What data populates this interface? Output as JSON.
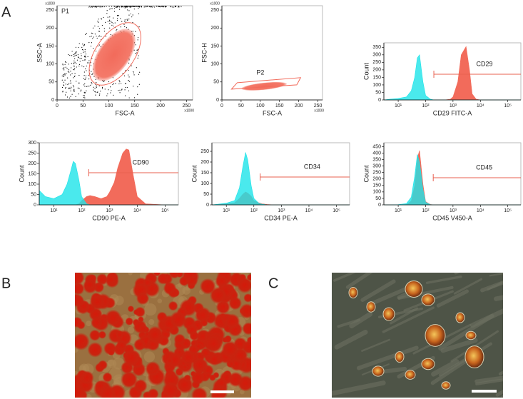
{
  "panel_labels": [
    "A",
    "B",
    "C"
  ],
  "chart_data": [
    {
      "type": "scatter",
      "xlabel": "FSC-A",
      "ylabel": "SSC-A",
      "x_multiplier": "x1000",
      "y_multiplier": "x1000",
      "xlim": [
        0,
        262
      ],
      "ylim": [
        0,
        262
      ],
      "xticks": [
        0,
        50,
        100,
        150,
        200,
        250
      ],
      "yticks": [
        0,
        50,
        100,
        150,
        200,
        250
      ],
      "gate": {
        "label": "P1"
      },
      "color": "#f26b5b"
    },
    {
      "type": "scatter",
      "xlabel": "FSC-A",
      "ylabel": "FSC-H",
      "x_multiplier": "x1000",
      "y_multiplier": "x1000",
      "xlim": [
        0,
        262
      ],
      "ylim": [
        0,
        262
      ],
      "xticks": [
        0,
        50,
        100,
        150,
        200,
        250
      ],
      "yticks": [
        0,
        50,
        100,
        150,
        200,
        250
      ],
      "gate": {
        "label": "P2"
      },
      "color": "#f26b5b"
    },
    {
      "type": "histogram",
      "xlabel": "CD29 FITC-A",
      "ylabel": "Count",
      "xscale": "log",
      "xlim": [
        3,
        300000
      ],
      "ylim": [
        0,
        380
      ],
      "xticks": [
        {
          "value": 10,
          "label": "10¹"
        },
        {
          "value": 100,
          "label": "10²"
        },
        {
          "value": 1000,
          "label": "10³"
        },
        {
          "value": 10000,
          "label": "10⁴"
        },
        {
          "value": 100000,
          "label": "10⁵"
        }
      ],
      "yticks": [
        0,
        50,
        100,
        150,
        200,
        250,
        300,
        350
      ],
      "x": [
        3,
        5,
        10,
        20,
        30,
        40,
        50,
        60,
        80,
        100,
        150,
        200,
        300,
        500,
        800,
        1000,
        1500,
        2000,
        3000,
        4000,
        5000,
        7000,
        10000,
        20000,
        100000,
        300000
      ],
      "series": [
        {
          "color": "#f26b5b",
          "values": [
            0,
            0,
            0,
            0,
            0,
            0,
            0,
            0,
            0,
            0,
            0,
            0,
            0,
            0,
            5,
            20,
            120,
            300,
            355,
            200,
            40,
            5,
            0,
            0,
            0,
            0
          ]
        },
        {
          "color": "#1de3e8",
          "values": [
            0,
            5,
            10,
            20,
            60,
            150,
            280,
            300,
            120,
            30,
            5,
            0,
            0,
            0,
            0,
            0,
            0,
            0,
            0,
            0,
            0,
            0,
            0,
            0,
            0,
            0
          ]
        }
      ],
      "gate": {
        "label": "CD29",
        "x": 200,
        "y": 171
      }
    },
    {
      "type": "histogram",
      "xlabel": "CD90 PE-A",
      "ylabel": "Count",
      "xscale": "log",
      "xlim": [
        3,
        300000
      ],
      "ylim": [
        0,
        300
      ],
      "xticks": [
        {
          "value": 10,
          "label": "10¹"
        },
        {
          "value": 100,
          "label": "10²"
        },
        {
          "value": 1000,
          "label": "10³"
        },
        {
          "value": 10000,
          "label": "10⁴"
        },
        {
          "value": 100000,
          "label": "10⁵"
        }
      ],
      "yticks": [
        0,
        50,
        100,
        150,
        200,
        250,
        300
      ],
      "x": [
        3,
        5,
        10,
        20,
        30,
        40,
        50,
        60,
        80,
        100,
        150,
        200,
        300,
        500,
        800,
        1000,
        1500,
        2000,
        3000,
        4000,
        5000,
        7000,
        10000,
        20000,
        100000,
        300000
      ],
      "series": [
        {
          "color": "#f26b5b",
          "values": [
            0,
            0,
            0,
            0,
            0,
            0,
            0,
            0,
            5,
            20,
            40,
            45,
            40,
            30,
            40,
            60,
            110,
            180,
            250,
            270,
            265,
            150,
            40,
            5,
            0,
            0
          ]
        },
        {
          "color": "#1de3e8",
          "values": [
            70,
            40,
            30,
            50,
            100,
            160,
            210,
            200,
            120,
            40,
            5,
            0,
            0,
            0,
            0,
            0,
            0,
            0,
            0,
            0,
            0,
            0,
            0,
            0,
            0,
            0
          ]
        }
      ],
      "gate": {
        "label": "CD90",
        "x": 180,
        "y": 155
      }
    },
    {
      "type": "histogram",
      "xlabel": "CD34 PE-A",
      "ylabel": "Count",
      "xscale": "log",
      "xlim": [
        3,
        300000
      ],
      "ylim": [
        0,
        290
      ],
      "xticks": [
        {
          "value": 10,
          "label": "10¹"
        },
        {
          "value": 100,
          "label": "10²"
        },
        {
          "value": 1000,
          "label": "10³"
        },
        {
          "value": 10000,
          "label": "10⁴"
        },
        {
          "value": 100000,
          "label": "10⁵"
        }
      ],
      "yticks": [
        0,
        50,
        100,
        150,
        200,
        250
      ],
      "x": [
        3,
        5,
        10,
        20,
        30,
        40,
        50,
        60,
        80,
        100,
        150,
        200,
        300,
        500,
        800,
        1000,
        1500,
        2000,
        3000,
        4000,
        5000,
        7000,
        10000,
        20000,
        100000,
        300000
      ],
      "series": [
        {
          "color": "#f26b5b",
          "values": [
            0,
            2,
            5,
            10,
            30,
            50,
            60,
            55,
            40,
            20,
            10,
            5,
            2,
            0,
            0,
            0,
            0,
            0,
            0,
            0,
            0,
            0,
            0,
            0,
            0,
            0
          ]
        },
        {
          "color": "#1de3e8",
          "values": [
            0,
            3,
            8,
            20,
            80,
            180,
            245,
            210,
            90,
            30,
            8,
            3,
            0,
            0,
            0,
            0,
            0,
            0,
            0,
            0,
            0,
            0,
            0,
            0,
            0,
            0
          ]
        }
      ],
      "gate": {
        "label": "CD34",
        "x": 170,
        "y": 130
      }
    },
    {
      "type": "histogram",
      "xlabel": "CD45 V450-A",
      "ylabel": "Count",
      "xscale": "log",
      "xlim": [
        3,
        300000
      ],
      "ylim": [
        0,
        480
      ],
      "xticks": [
        {
          "value": 10,
          "label": "10¹"
        },
        {
          "value": 100,
          "label": "10²"
        },
        {
          "value": 1000,
          "label": "10³"
        },
        {
          "value": 10000,
          "label": "10⁴"
        },
        {
          "value": 100000,
          "label": "10⁵"
        }
      ],
      "yticks": [
        0,
        50,
        100,
        150,
        200,
        250,
        300,
        350,
        400,
        450
      ],
      "x": [
        3,
        5,
        10,
        20,
        30,
        40,
        50,
        60,
        80,
        100,
        150,
        200,
        300,
        500,
        800,
        1000,
        1500,
        2000,
        3000,
        4000,
        5000,
        7000,
        10000,
        20000,
        100000,
        300000
      ],
      "series": [
        {
          "color": "#f26b5b",
          "values": [
            0,
            0,
            0,
            3,
            30,
            150,
            360,
            420,
            160,
            25,
            3,
            0,
            0,
            0,
            0,
            0,
            0,
            0,
            0,
            0,
            0,
            0,
            0,
            0,
            0,
            0
          ]
        },
        {
          "color": "#1de3e8",
          "values": [
            0,
            0,
            2,
            10,
            60,
            220,
            390,
            330,
            120,
            20,
            2,
            0,
            0,
            0,
            0,
            0,
            0,
            0,
            0,
            0,
            0,
            0,
            0,
            0,
            0,
            0
          ]
        }
      ],
      "gate": {
        "label": "CD45",
        "x": 190,
        "y": 210
      }
    }
  ]
}
